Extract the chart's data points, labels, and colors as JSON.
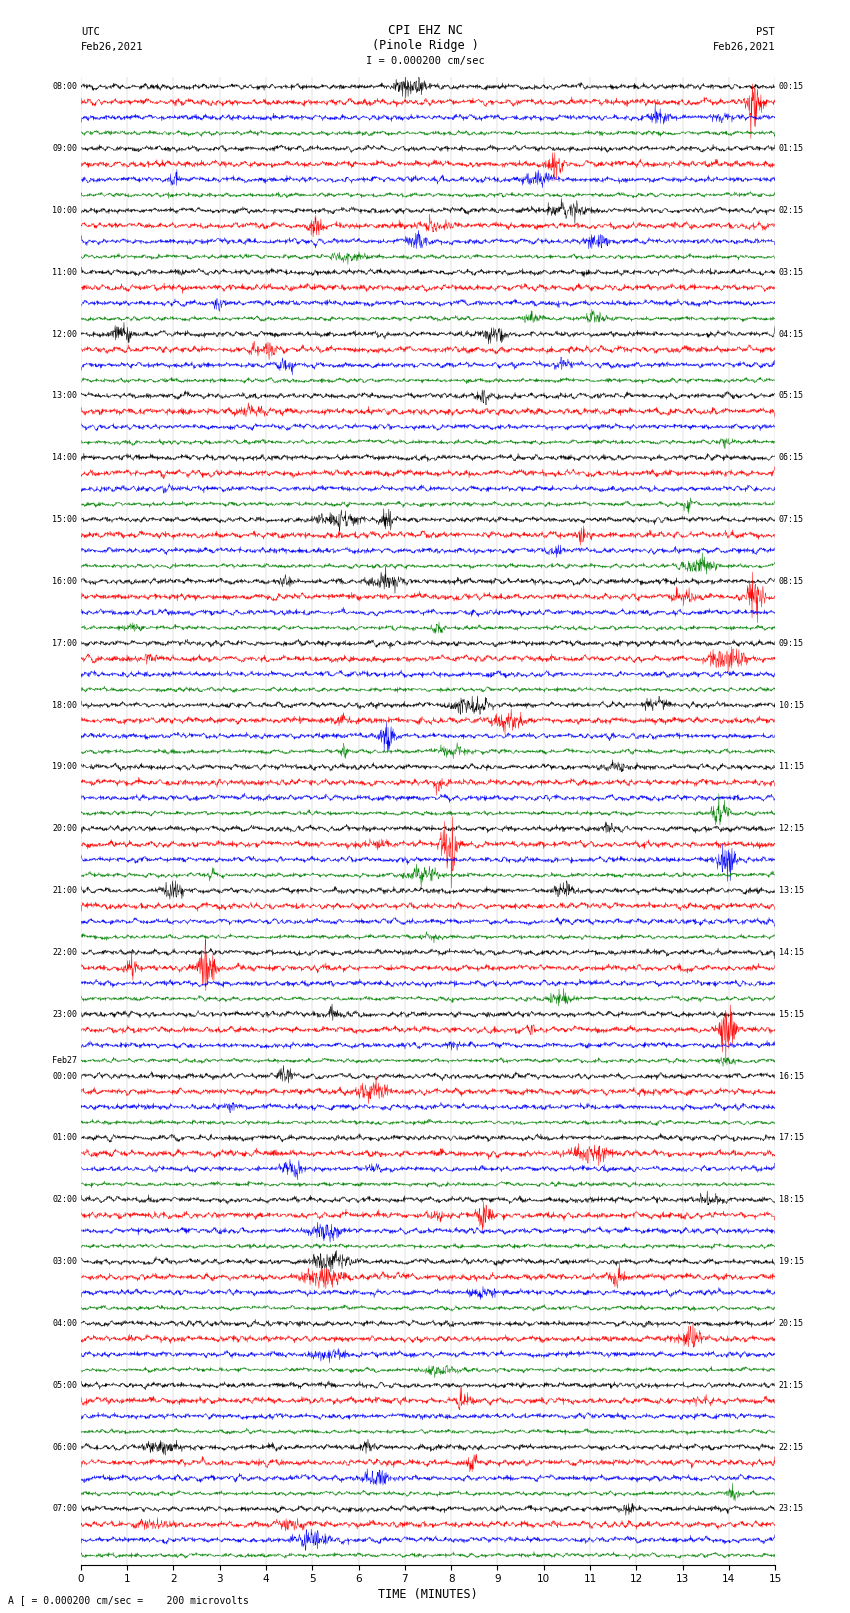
{
  "title_line1": "CPI EHZ NC",
  "title_line2": "(Pinole Ridge )",
  "scale_label": "I = 0.000200 cm/sec",
  "footer_label": "A [ = 0.000200 cm/sec =    200 microvolts",
  "utc_label": "UTC",
  "utc_date": "Feb26,2021",
  "pst_label": "PST",
  "pst_date": "Feb26,2021",
  "xlabel": "TIME (MINUTES)",
  "xticks": [
    0,
    1,
    2,
    3,
    4,
    5,
    6,
    7,
    8,
    9,
    10,
    11,
    12,
    13,
    14,
    15
  ],
  "colors": [
    "black",
    "red",
    "blue",
    "green"
  ],
  "n_hours": 24,
  "bg_color": "white",
  "left_labels": [
    {
      "text": "08:00",
      "row": 0
    },
    {
      "text": "09:00",
      "row": 4
    },
    {
      "text": "10:00",
      "row": 8
    },
    {
      "text": "11:00",
      "row": 12
    },
    {
      "text": "12:00",
      "row": 16
    },
    {
      "text": "13:00",
      "row": 20
    },
    {
      "text": "14:00",
      "row": 24
    },
    {
      "text": "15:00",
      "row": 28
    },
    {
      "text": "16:00",
      "row": 32
    },
    {
      "text": "17:00",
      "row": 36
    },
    {
      "text": "18:00",
      "row": 40
    },
    {
      "text": "19:00",
      "row": 44
    },
    {
      "text": "20:00",
      "row": 48
    },
    {
      "text": "21:00",
      "row": 52
    },
    {
      "text": "22:00",
      "row": 56
    },
    {
      "text": "23:00",
      "row": 60
    },
    {
      "text": "Feb27",
      "row": 63
    },
    {
      "text": "00:00",
      "row": 64
    },
    {
      "text": "01:00",
      "row": 68
    },
    {
      "text": "02:00",
      "row": 72
    },
    {
      "text": "03:00",
      "row": 76
    },
    {
      "text": "04:00",
      "row": 80
    },
    {
      "text": "05:00",
      "row": 84
    },
    {
      "text": "06:00",
      "row": 88
    },
    {
      "text": "07:00",
      "row": 92
    }
  ],
  "right_labels": [
    {
      "text": "00:15",
      "row": 0
    },
    {
      "text": "01:15",
      "row": 4
    },
    {
      "text": "02:15",
      "row": 8
    },
    {
      "text": "03:15",
      "row": 12
    },
    {
      "text": "04:15",
      "row": 16
    },
    {
      "text": "05:15",
      "row": 20
    },
    {
      "text": "06:15",
      "row": 24
    },
    {
      "text": "07:15",
      "row": 28
    },
    {
      "text": "08:15",
      "row": 32
    },
    {
      "text": "09:15",
      "row": 36
    },
    {
      "text": "10:15",
      "row": 40
    },
    {
      "text": "11:15",
      "row": 44
    },
    {
      "text": "12:15",
      "row": 48
    },
    {
      "text": "13:15",
      "row": 52
    },
    {
      "text": "14:15",
      "row": 56
    },
    {
      "text": "15:15",
      "row": 60
    },
    {
      "text": "16:15",
      "row": 64
    },
    {
      "text": "17:15",
      "row": 68
    },
    {
      "text": "18:15",
      "row": 72
    },
    {
      "text": "19:15",
      "row": 76
    },
    {
      "text": "20:15",
      "row": 80
    },
    {
      "text": "21:15",
      "row": 84
    },
    {
      "text": "22:15",
      "row": 88
    },
    {
      "text": "23:15",
      "row": 92
    }
  ]
}
